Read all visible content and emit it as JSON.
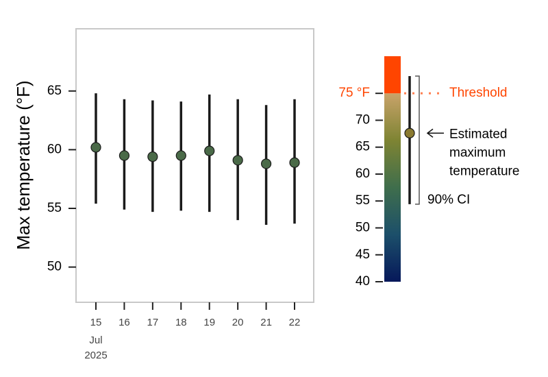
{
  "chart_data": {
    "type": "errorbar",
    "y_label": "Max temperature (°F)",
    "categories": [
      "15",
      "16",
      "17",
      "18",
      "19",
      "20",
      "21",
      "22"
    ],
    "x_sublabels": [
      "Jul",
      "2025"
    ],
    "series": [
      {
        "color": "#4a6a48",
        "values": [
          60.2,
          59.5,
          59.4,
          59.5,
          59.9,
          59.1,
          58.8,
          58.9
        ],
        "low": [
          55.4,
          54.9,
          54.7,
          54.8,
          54.7,
          54.0,
          53.6,
          53.7
        ],
        "high": [
          64.8,
          64.3,
          64.2,
          64.1,
          64.7,
          64.3,
          63.8,
          64.3
        ]
      }
    ],
    "ylim": [
      47,
      70.3
    ],
    "yticks": [
      50,
      55,
      60,
      65
    ],
    "legend": {
      "ylim": [
        40,
        81.9
      ],
      "yticks": [
        40,
        45,
        50,
        55,
        60,
        65,
        70,
        {
          "value": 75,
          "label": "75 °F"
        }
      ],
      "threshold": 75,
      "threshold_color": "#ff4500",
      "threshold_line_color": "#ff7f50",
      "threshold_label": "Threshold",
      "gradient": [
        "#06185a",
        "#1c4f6a",
        "#3f6e4c",
        "#7e8433",
        "#c9a36a"
      ],
      "example": {
        "value": 67.6,
        "low": 54.4,
        "high": 78.2,
        "color": "#8a7a30"
      },
      "estimate_label": [
        "Estimated",
        "maximum",
        "temperature"
      ],
      "ci_label": "90% CI"
    }
  }
}
